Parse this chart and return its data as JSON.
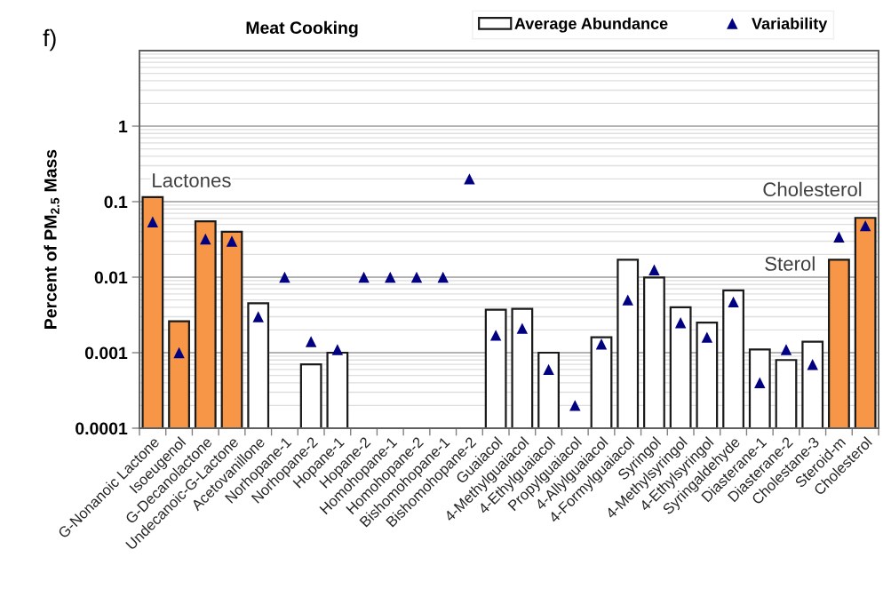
{
  "chart_data": {
    "type": "bar",
    "title": "Meat Cooking",
    "ylabel": "Percent of PM$_{2.5}$ Mass",
    "categories": [
      "G-Nonanoic Lactone",
      "Isoeugenol",
      "G-Decanolactone",
      "Undecanoic-G-Lactone",
      "Acetovanillone",
      "Norhopane-1",
      "Norhopane-2",
      "Hopane-1",
      "Hopane-2",
      "Homohopane-1",
      "Homohopane-2",
      "Bishomohopane-1",
      "Bishomohopane-2",
      "Guaiacol",
      "4-Methylguaiacol",
      "4-Ethylguaiacol",
      "Propylguaiacol",
      "4-Allylguaiacol",
      "4-Formylguaiacol",
      "Syringol",
      "4-Methylsyringol",
      "4-Ethylsyringol",
      "Syringaldehyde",
      "Diasterane-1",
      "Diasterane-2",
      "Cholestane-3",
      "Steroid-m",
      "Cholesterol"
    ],
    "series": [
      {
        "name": "Average Abundance",
        "color": "#ffffff",
        "colors": [
          "#f79646",
          "#f79646",
          "#f79646",
          "#f79646",
          "#ffffff",
          "#ffffff",
          "#ffffff",
          "#ffffff",
          "#ffffff",
          "#ffffff",
          "#ffffff",
          "#ffffff",
          "#ffffff",
          "#ffffff",
          "#ffffff",
          "#ffffff",
          "#ffffff",
          "#ffffff",
          "#ffffff",
          "#ffffff",
          "#ffffff",
          "#ffffff",
          "#ffffff",
          "#ffffff",
          "#ffffff",
          "#ffffff",
          "#f79646",
          "#f79646"
        ],
        "values": [
          0.115,
          0.0026,
          0.055,
          0.04,
          0.0045,
          null,
          0.0007,
          0.001,
          null,
          null,
          null,
          null,
          null,
          0.0037,
          0.0038,
          0.001,
          null,
          0.0016,
          0.017,
          0.0099,
          0.004,
          0.0025,
          0.0067,
          0.0011,
          0.0008,
          0.0014,
          0.017,
          0.061
        ]
      },
      {
        "name": "Variability",
        "type": "scatter",
        "color": "#000080",
        "marker": "triangle",
        "values": [
          0.054,
          0.001,
          0.032,
          0.03,
          0.003,
          0.01,
          0.0014,
          0.0011,
          0.01,
          0.01,
          0.01,
          0.01,
          0.2,
          0.0017,
          0.0021,
          0.0006,
          0.0002,
          0.0013,
          0.005,
          0.0125,
          0.0025,
          0.0016,
          0.0047,
          0.0004,
          0.0011,
          0.0007,
          0.034,
          0.048
        ]
      }
    ],
    "log": true,
    "ylim": [
      0.0001,
      10
    ],
    "yticks": [
      0.0001,
      0.001,
      0.01,
      0.1,
      1
    ],
    "grid": "y",
    "legend": "top right",
    "annotations": [
      "f)",
      "Lactones",
      "Cholesterol",
      "Sterol"
    ]
  }
}
